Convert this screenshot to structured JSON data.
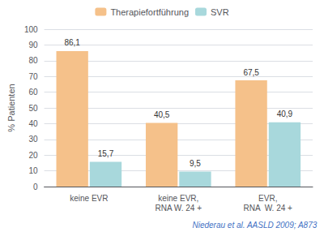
{
  "chart_data": {
    "type": "bar",
    "categories": [
      "keine EVR",
      "keine EVR,\nRNA W. 24 +",
      "EVR,\nRNA  W. 24 +"
    ],
    "series": [
      {
        "name": "Therapiefortführung",
        "color": "#F5C18A",
        "values": [
          86.1,
          40.5,
          67.5
        ],
        "value_labels": [
          "86,1",
          "40,5",
          "67,5"
        ]
      },
      {
        "name": "SVR",
        "color": "#A8D8DC",
        "values": [
          15.7,
          9.5,
          40.9
        ],
        "value_labels": [
          "15,7",
          "9,5",
          "40,9"
        ]
      }
    ],
    "ylabel": "% Patienten",
    "ylim": [
      0,
      100
    ],
    "yticks": [
      0,
      10,
      20,
      30,
      40,
      50,
      60,
      70,
      80,
      90,
      100
    ],
    "grid": true,
    "legend": "top",
    "data_labels": true,
    "annotations": [
      {
        "text": "Niederau et al. AASLD 2009; A873",
        "color": "#4472C4"
      }
    ]
  }
}
